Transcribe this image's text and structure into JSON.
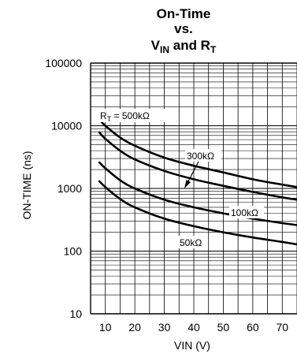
{
  "chart_data": {
    "type": "line",
    "title": {
      "line1": "On-Time",
      "line2": "vs.",
      "line3_main": "V",
      "line3_sub": "IN",
      "line3_mid": " and R",
      "line3_sub2": "T"
    },
    "xlabel": "VIN (V)",
    "ylabel": "ON-TIME (ns)",
    "x_scale": "linear",
    "y_scale": "log",
    "xlim": [
      5,
      75
    ],
    "ylim": [
      10,
      100000
    ],
    "x_ticks": [
      {
        "value": 10,
        "label": "10"
      },
      {
        "value": 20,
        "label": "20"
      },
      {
        "value": 30,
        "label": "30"
      },
      {
        "value": 40,
        "label": "40"
      },
      {
        "value": 50,
        "label": "50"
      },
      {
        "value": 60,
        "label": "60"
      },
      {
        "value": 70,
        "label": "70"
      }
    ],
    "y_ticks": [
      {
        "value": 10,
        "label": "10"
      },
      {
        "value": 100,
        "label": "100"
      },
      {
        "value": 1000,
        "label": "1000"
      },
      {
        "value": 10000,
        "label": "10000"
      },
      {
        "value": 100000,
        "label": "100000"
      }
    ],
    "grid": true,
    "series": [
      {
        "label_main": "R",
        "label_sub": "T",
        "label_rest": " = 500kΩ",
        "x": [
          8,
          10,
          15,
          20,
          30,
          40,
          50,
          60,
          70,
          75
        ],
        "y": [
          12500,
          10000,
          6500,
          4800,
          3100,
          2300,
          1800,
          1400,
          1150,
          1050
        ]
      },
      {
        "label_main": "300kΩ",
        "label_sub": "",
        "label_rest": "",
        "x": [
          8,
          10,
          15,
          20,
          30,
          40,
          50,
          60,
          70,
          75
        ],
        "y": [
          7800,
          6200,
          4000,
          2900,
          1900,
          1400,
          1100,
          880,
          720,
          660
        ]
      },
      {
        "label_main": "100kΩ",
        "label_sub": "",
        "label_rest": "",
        "x": [
          8,
          10,
          15,
          20,
          30,
          40,
          50,
          60,
          70,
          75
        ],
        "y": [
          2600,
          2100,
          1350,
          1000,
          660,
          500,
          400,
          330,
          280,
          260
        ]
      },
      {
        "label_main": "50kΩ",
        "label_sub": "",
        "label_rest": "",
        "x": [
          8,
          10,
          15,
          20,
          30,
          40,
          50,
          60,
          70,
          75
        ],
        "y": [
          1300,
          1050,
          680,
          500,
          330,
          250,
          200,
          165,
          140,
          128
        ]
      }
    ]
  }
}
